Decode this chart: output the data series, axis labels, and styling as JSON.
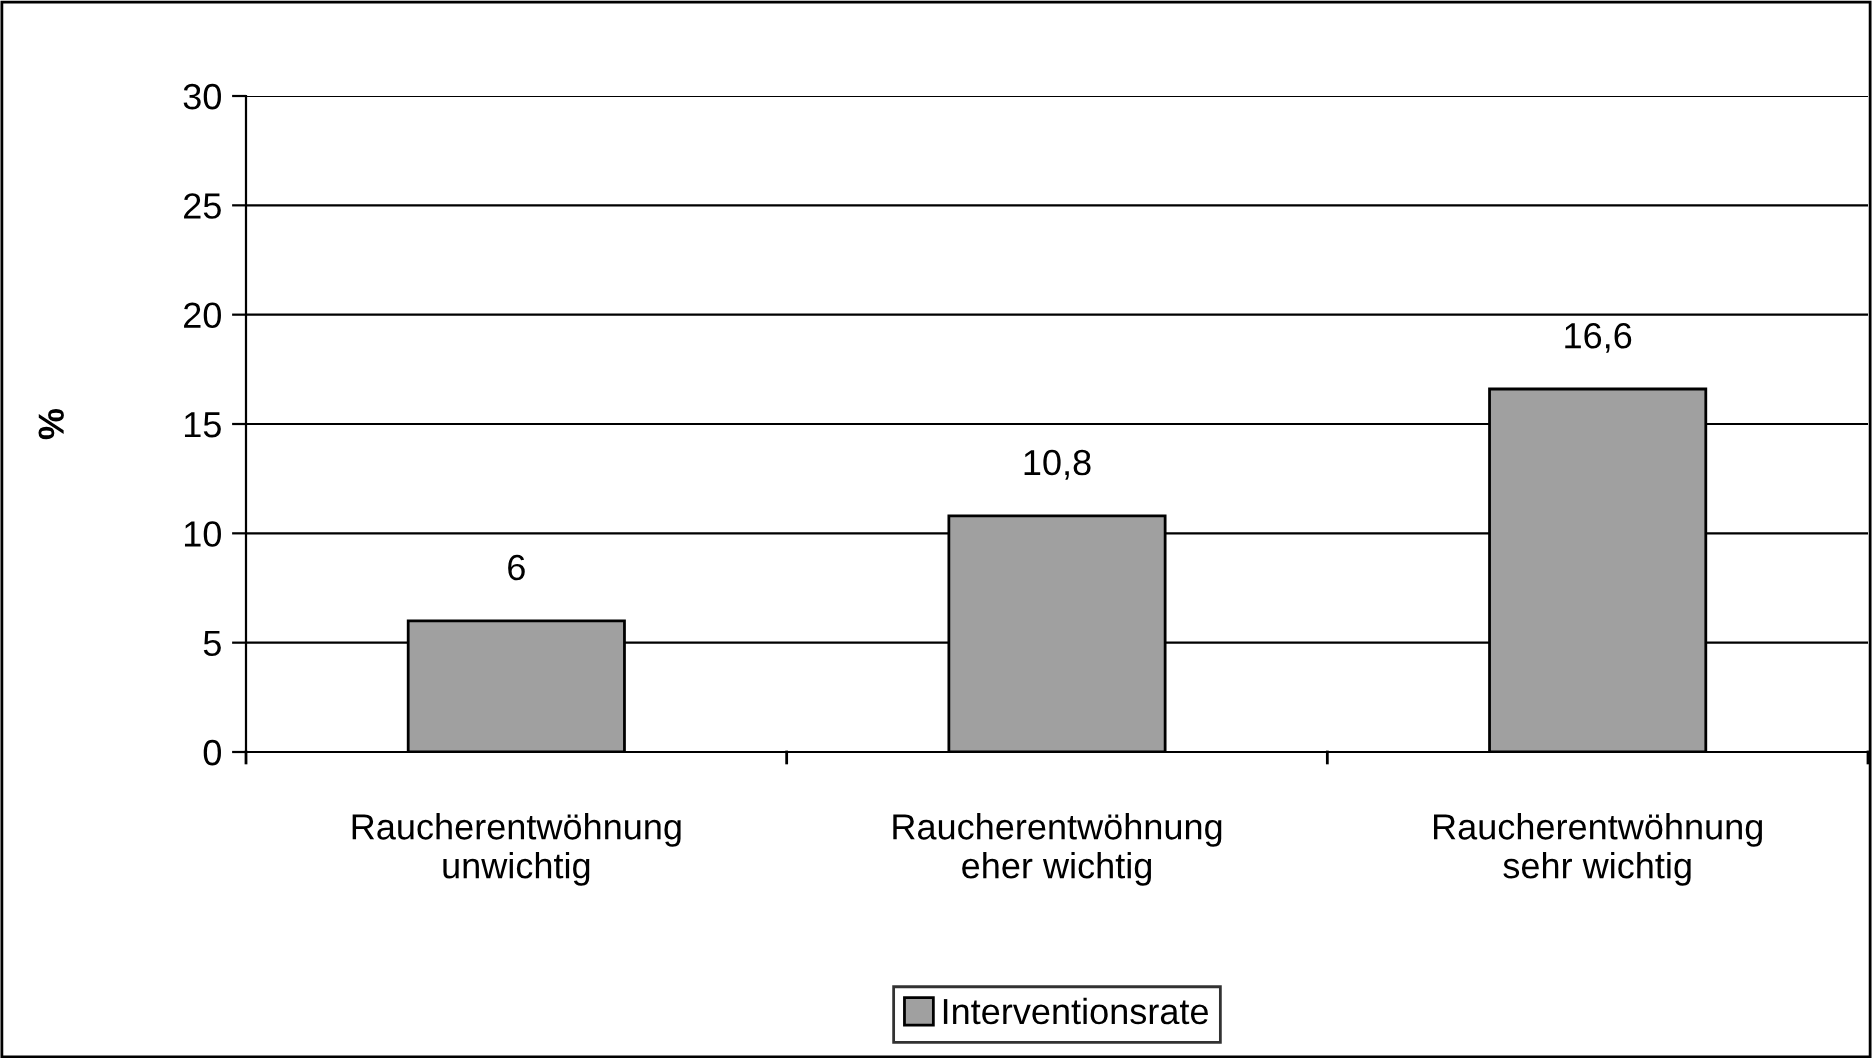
{
  "chart_data": {
    "type": "bar",
    "ylabel": "%",
    "categories": [
      "Raucherentwöhnung\nunwichtig",
      "Raucherentwöhnung\neher wichtig",
      "Raucherentwöhnung\nsehr wichtig"
    ],
    "series": [
      {
        "name": "Interventionsrate",
        "color": "#a0a0a0",
        "values": [
          6,
          10.8,
          16.6
        ],
        "value_labels": [
          "6",
          "10,8",
          "16,6"
        ]
      }
    ],
    "ylim": [
      0,
      30
    ],
    "yticks": [
      0,
      5,
      10,
      15,
      20,
      25,
      30
    ],
    "grid": "y",
    "legend": "bottom"
  }
}
